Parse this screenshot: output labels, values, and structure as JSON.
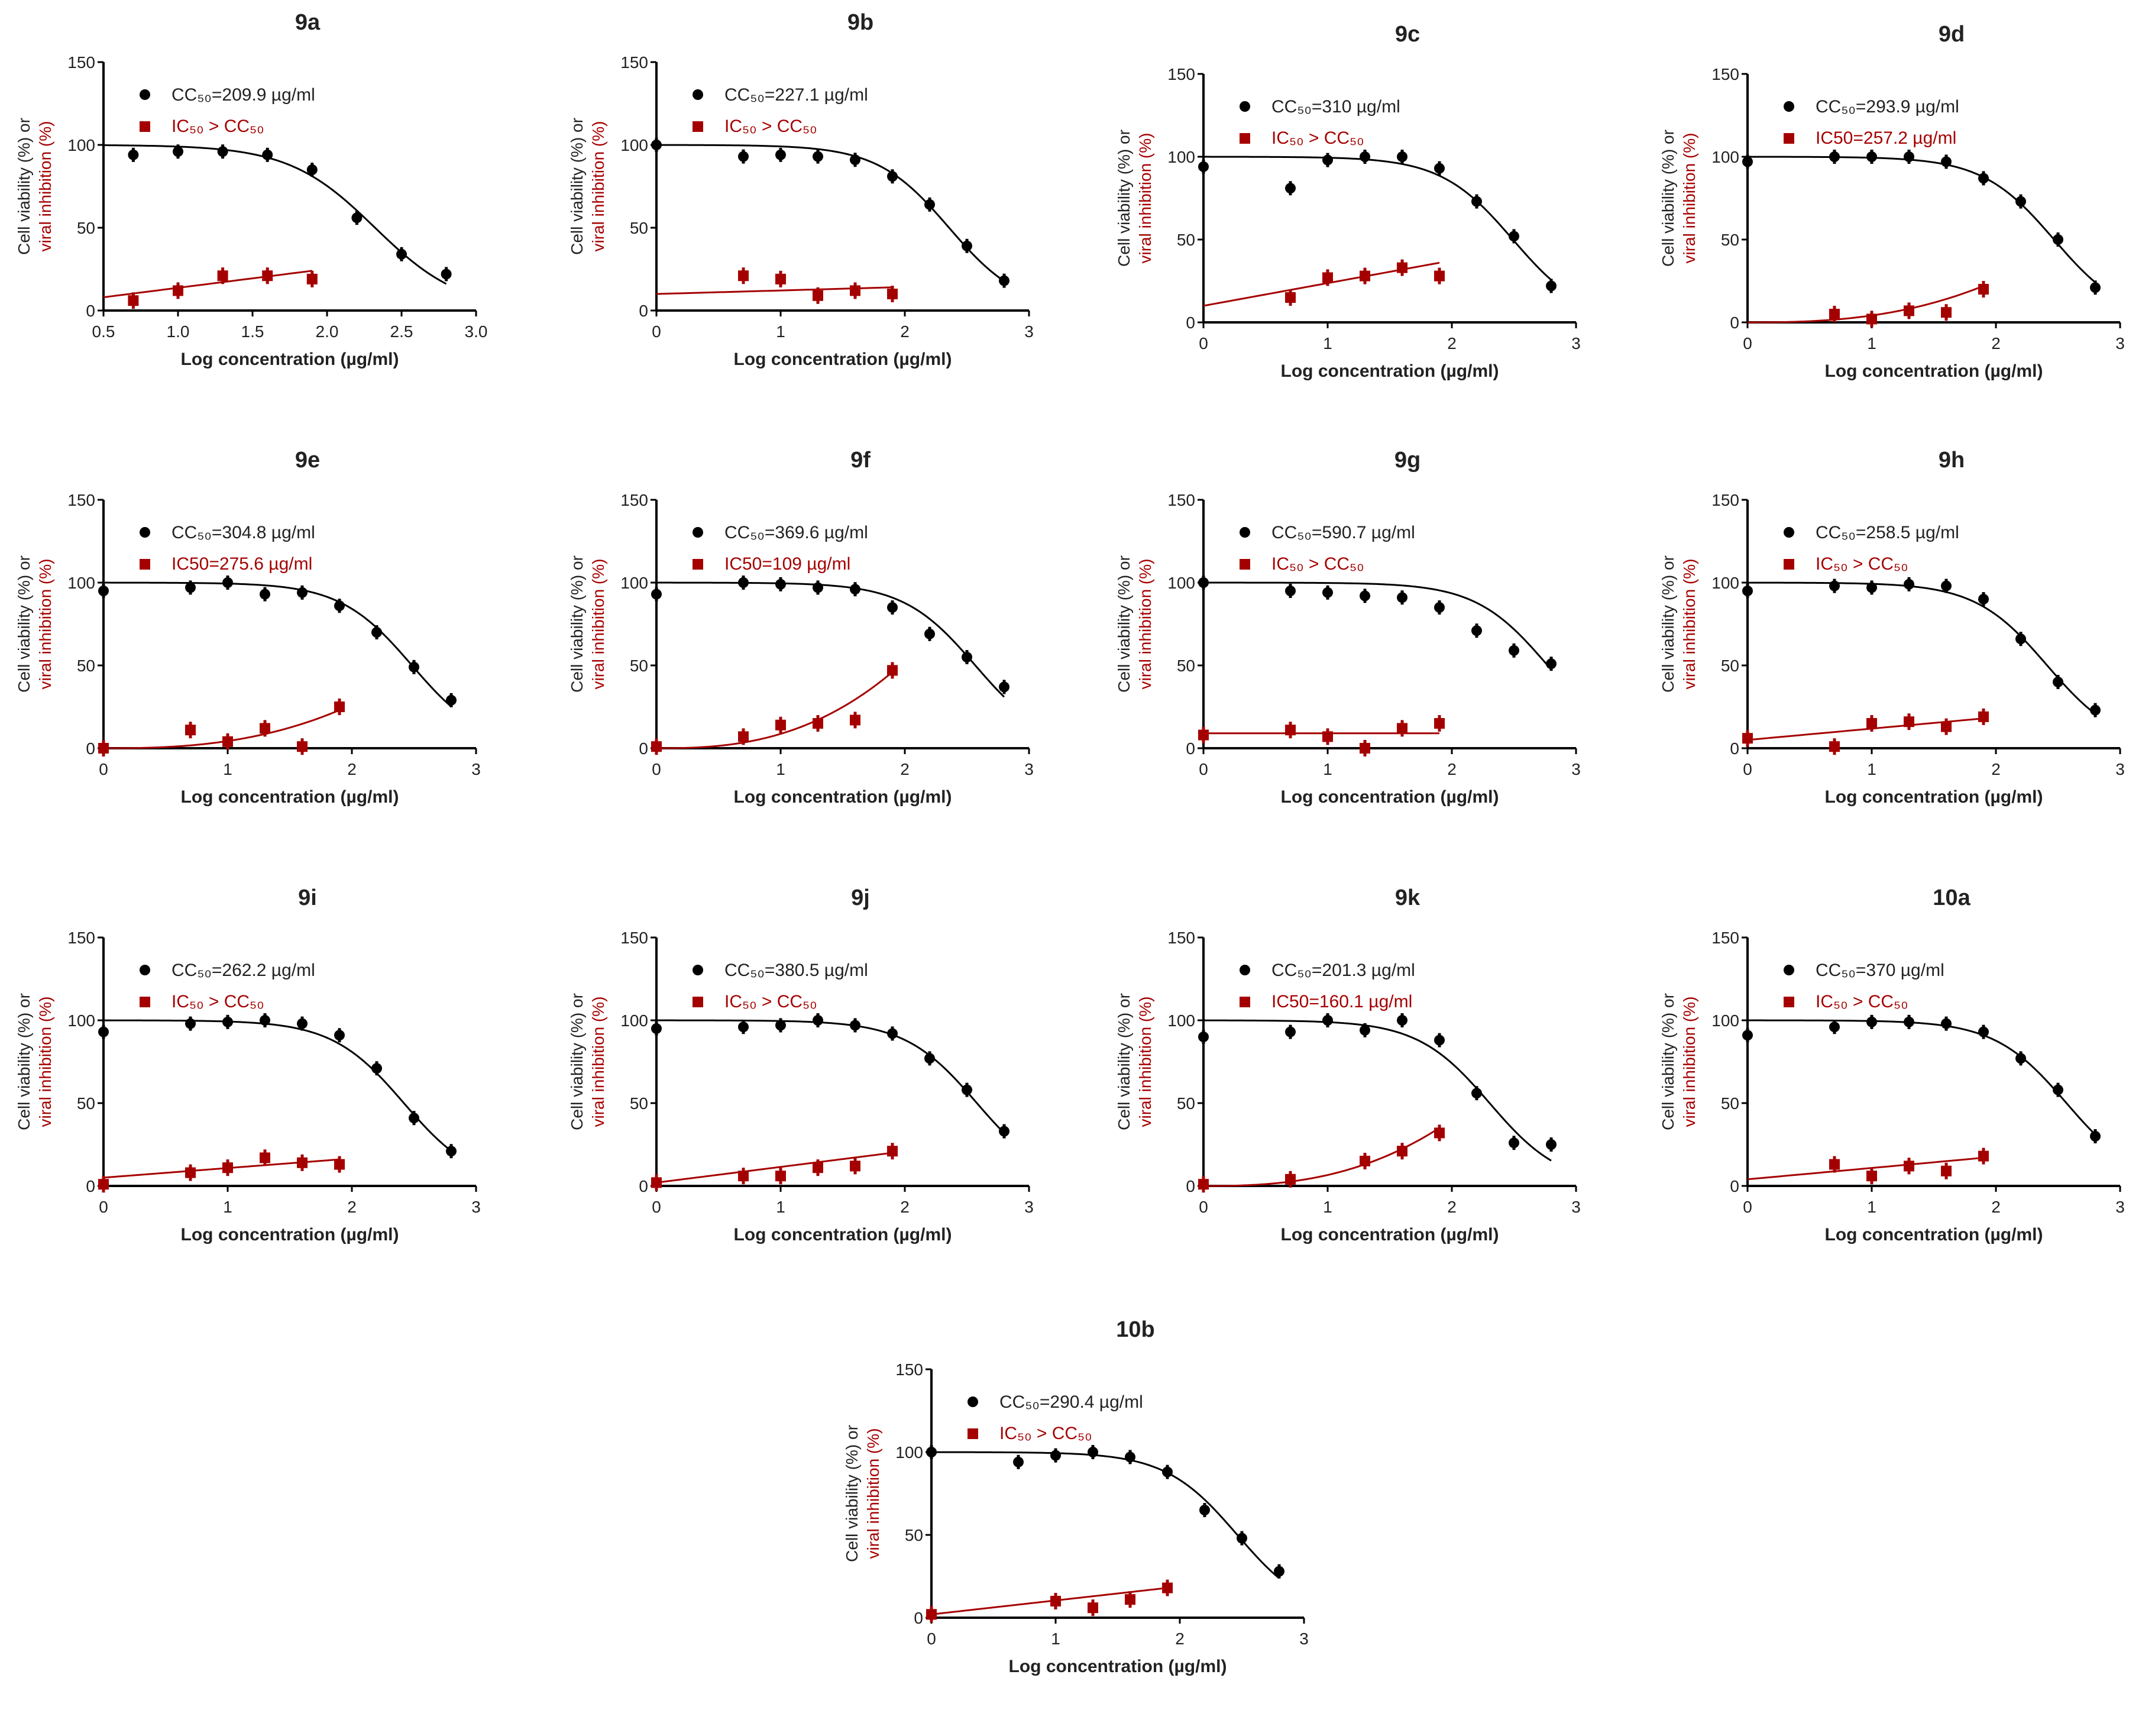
{
  "colors": {
    "viability": "#000000",
    "inhibition": "#a50000"
  },
  "chart_data": [
    {
      "type": "line",
      "title": "9a",
      "xlim": [
        0.5,
        3.0
      ],
      "xticks": [
        "0.5",
        "1.0",
        "1.5",
        "2.0",
        "2.5",
        "3.0"
      ],
      "ylim": [
        0,
        150
      ],
      "yticks": [
        "0",
        "50",
        "100",
        "150"
      ],
      "ylabel_line1": "Cell viability (%) or",
      "ylabel_line2": "viral inhibition (%)",
      "xlabel": "Log concentration  (µg/ml)",
      "legend": [
        "CC₅₀=209.9 µg/ml",
        "IC₅₀ > CC₅₀"
      ],
      "cc50": 209.9,
      "viability": {
        "x": [
          0.7,
          1.0,
          1.3,
          1.6,
          1.9,
          2.2,
          2.5,
          2.8
        ],
        "y": [
          94,
          96,
          96,
          94,
          85,
          56,
          34,
          22
        ]
      },
      "inhibition": {
        "x": [
          0.7,
          1.0,
          1.3,
          1.6,
          1.9
        ],
        "y": [
          6,
          12,
          21,
          21,
          19
        ]
      },
      "inhibition_fit": {
        "type": "linear",
        "range": [
          8,
          24
        ]
      }
    },
    {
      "type": "line",
      "title": "9b",
      "xlim": [
        0,
        3
      ],
      "xticks": [
        "0",
        "1",
        "2",
        "3"
      ],
      "ylim": [
        0,
        150
      ],
      "yticks": [
        "0",
        "50",
        "100",
        "150"
      ],
      "ylabel_line1": "Cell viability (%) or",
      "ylabel_line2": "viral inhibition (%)",
      "xlabel": "Log concentration  (µg/ml)",
      "legend": [
        "CC₅₀=227.1 µg/ml",
        "IC₅₀ > CC₅₀"
      ],
      "cc50": 227.1,
      "viability": {
        "x": [
          0,
          0.7,
          1.0,
          1.3,
          1.6,
          1.9,
          2.2,
          2.5,
          2.8
        ],
        "y": [
          100,
          93,
          94,
          93,
          91,
          81,
          64,
          39,
          18
        ]
      },
      "inhibition": {
        "x": [
          0.7,
          1.0,
          1.3,
          1.6,
          1.9
        ],
        "y": [
          21,
          19,
          9,
          12,
          10
        ]
      },
      "inhibition_fit": {
        "type": "linear",
        "range": [
          10,
          14
        ]
      }
    },
    {
      "type": "line",
      "title": "9c",
      "xlim": [
        0,
        3
      ],
      "xticks": [
        "0",
        "1",
        "2",
        "3"
      ],
      "ylim": [
        0,
        150
      ],
      "yticks": [
        "0",
        "50",
        "100",
        "150"
      ],
      "ylabel_line1": "Cell viability (%) or",
      "ylabel_line2": "viral inhibition (%)",
      "xlabel": "Log concentration  (µg/ml)",
      "legend": [
        "CC₅₀=310 µg/ml",
        "IC₅₀ > CC₅₀"
      ],
      "cc50": 310,
      "viability": {
        "x": [
          0,
          0.7,
          1.0,
          1.3,
          1.6,
          1.9,
          2.2,
          2.5,
          2.8
        ],
        "y": [
          94,
          81,
          98,
          100,
          100,
          93,
          73,
          52,
          22
        ]
      },
      "inhibition": {
        "x": [
          0.7,
          1.0,
          1.3,
          1.6,
          1.9
        ],
        "y": [
          15,
          27,
          28,
          33,
          28
        ]
      },
      "inhibition_fit": {
        "type": "linear",
        "range": [
          10,
          36
        ]
      }
    },
    {
      "type": "line",
      "title": "9d",
      "xlim": [
        0,
        3
      ],
      "xticks": [
        "0",
        "1",
        "2",
        "3"
      ],
      "ylim": [
        0,
        150
      ],
      "yticks": [
        "0",
        "50",
        "100",
        "150"
      ],
      "ylabel_line1": "Cell viability (%) or",
      "ylabel_line2": "viral inhibition (%)",
      "xlabel": "Log concentration  (µg/ml)",
      "legend": [
        "CC₅₀=293.9 µg/ml",
        "IC50=257.2 µg/ml"
      ],
      "cc50": 293.9,
      "viability": {
        "x": [
          0,
          0.7,
          1.0,
          1.3,
          1.6,
          1.9,
          2.2,
          2.5,
          2.8
        ],
        "y": [
          97,
          100,
          100,
          100,
          97,
          87,
          73,
          50,
          21
        ]
      },
      "inhibition": {
        "x": [
          0.7,
          1.0,
          1.3,
          1.6,
          1.9
        ],
        "y": [
          5,
          2,
          7,
          6,
          20
        ]
      },
      "inhibition_fit": {
        "type": "curved",
        "range": [
          0,
          22
        ]
      }
    },
    {
      "type": "line",
      "title": "9e",
      "xlim": [
        0,
        3
      ],
      "xticks": [
        "0",
        "1",
        "2",
        "3"
      ],
      "ylim": [
        0,
        150
      ],
      "yticks": [
        "0",
        "50",
        "100",
        "150"
      ],
      "ylabel_line1": "Cell viability (%) or",
      "ylabel_line2": "viral inhibition (%)",
      "xlabel": "Log concentration  (µg/ml)",
      "legend": [
        "CC₅₀=304.8 µg/ml",
        "IC50=275.6 µg/ml"
      ],
      "cc50": 304.8,
      "viability": {
        "x": [
          0,
          0.7,
          1.0,
          1.3,
          1.6,
          1.9,
          2.2,
          2.5,
          2.8
        ],
        "y": [
          95,
          97,
          100,
          93,
          94,
          86,
          70,
          49,
          29
        ]
      },
      "inhibition": {
        "x": [
          0,
          0.7,
          1.0,
          1.3,
          1.6,
          1.9
        ],
        "y": [
          0,
          11,
          4,
          12,
          1,
          25
        ]
      },
      "inhibition_fit": {
        "type": "curved",
        "range": [
          0,
          23
        ]
      }
    },
    {
      "type": "line",
      "title": "9f",
      "xlim": [
        0,
        3
      ],
      "xticks": [
        "0",
        "1",
        "2",
        "3"
      ],
      "ylim": [
        0,
        150
      ],
      "yticks": [
        "0",
        "50",
        "100",
        "150"
      ],
      "ylabel_line1": "Cell viability (%) or",
      "ylabel_line2": "viral inhibition (%)",
      "xlabel": "Log concentration  (µg/ml)",
      "legend": [
        "CC₅₀=369.6 µg/ml",
        "IC50=109 µg/ml"
      ],
      "cc50": 369.6,
      "viability": {
        "x": [
          0,
          0.7,
          1.0,
          1.3,
          1.6,
          1.9,
          2.2,
          2.5,
          2.8
        ],
        "y": [
          93,
          100,
          99,
          97,
          96,
          85,
          69,
          55,
          37
        ]
      },
      "inhibition": {
        "x": [
          0,
          0.7,
          1.0,
          1.3,
          1.6,
          1.9
        ],
        "y": [
          1,
          7,
          14,
          15,
          17,
          47
        ]
      },
      "inhibition_fit": {
        "type": "curved",
        "range": [
          0,
          46
        ]
      }
    },
    {
      "type": "line",
      "title": "9g",
      "xlim": [
        0,
        3
      ],
      "xticks": [
        "0",
        "1",
        "2",
        "3"
      ],
      "ylim": [
        0,
        150
      ],
      "yticks": [
        "0",
        "50",
        "100",
        "150"
      ],
      "ylabel_line1": "Cell viability (%) or",
      "ylabel_line2": "viral inhibition (%)",
      "xlabel": "Log concentration  (µg/ml)",
      "legend": [
        "CC₅₀=590.7 µg/ml",
        "IC₅₀ > CC₅₀"
      ],
      "cc50": 590.7,
      "viability": {
        "x": [
          0,
          0.7,
          1.0,
          1.3,
          1.6,
          1.9,
          2.2,
          2.5,
          2.8
        ],
        "y": [
          100,
          95,
          94,
          92,
          91,
          85,
          71,
          59,
          51
        ]
      },
      "inhibition": {
        "x": [
          0,
          0.7,
          1.0,
          1.3,
          1.6,
          1.9
        ],
        "y": [
          8,
          11,
          7,
          0,
          12,
          15
        ]
      },
      "inhibition_fit": {
        "type": "linear",
        "range": [
          9,
          9
        ]
      }
    },
    {
      "type": "line",
      "title": "9h",
      "xlim": [
        0,
        3
      ],
      "xticks": [
        "0",
        "1",
        "2",
        "3"
      ],
      "ylim": [
        0,
        150
      ],
      "yticks": [
        "0",
        "50",
        "100",
        "150"
      ],
      "ylabel_line1": "Cell viability (%) or",
      "ylabel_line2": "viral inhibition (%)",
      "xlabel": "Log concentration  (µg/ml)",
      "legend": [
        "CC₅₀=258.5 µg/ml",
        "IC₅₀ > CC₅₀"
      ],
      "cc50": 258.5,
      "viability": {
        "x": [
          0,
          0.7,
          1.0,
          1.3,
          1.6,
          1.9,
          2.2,
          2.5,
          2.8
        ],
        "y": [
          95,
          98,
          97,
          99,
          98,
          90,
          66,
          40,
          23
        ]
      },
      "inhibition": {
        "x": [
          0,
          0.7,
          1.0,
          1.3,
          1.6,
          1.9
        ],
        "y": [
          6,
          1,
          15,
          16,
          13,
          19
        ]
      },
      "inhibition_fit": {
        "type": "linear",
        "range": [
          5,
          18
        ]
      }
    },
    {
      "type": "line",
      "title": "9i",
      "xlim": [
        0,
        3
      ],
      "xticks": [
        "0",
        "1",
        "2",
        "3"
      ],
      "ylim": [
        0,
        150
      ],
      "yticks": [
        "0",
        "50",
        "100",
        "150"
      ],
      "ylabel_line1": "Cell viability (%) or",
      "ylabel_line2": "viral inhibition (%)",
      "xlabel": "Log concentration  (µg/ml)",
      "legend": [
        "CC₅₀=262.2 µg/ml",
        "IC₅₀ > CC₅₀"
      ],
      "cc50": 262.2,
      "viability": {
        "x": [
          0,
          0.7,
          1.0,
          1.3,
          1.6,
          1.9,
          2.2,
          2.5,
          2.8
        ],
        "y": [
          93,
          98,
          99,
          100,
          98,
          91,
          71,
          41,
          21
        ]
      },
      "inhibition": {
        "x": [
          0,
          0.7,
          1.0,
          1.3,
          1.6,
          1.9
        ],
        "y": [
          1,
          8,
          11,
          17,
          14,
          13
        ]
      },
      "inhibition_fit": {
        "type": "linear",
        "range": [
          5,
          16
        ]
      }
    },
    {
      "type": "line",
      "title": "9j",
      "xlim": [
        0,
        3
      ],
      "xticks": [
        "0",
        "1",
        "2",
        "3"
      ],
      "ylim": [
        0,
        150
      ],
      "yticks": [
        "0",
        "50",
        "100",
        "150"
      ],
      "ylabel_line1": "Cell viability (%) or",
      "ylabel_line2": "viral inhibition (%)",
      "xlabel": "Log concentration  (µg/ml)",
      "legend": [
        "CC₅₀=380.5 µg/ml",
        "IC₅₀ > CC₅₀"
      ],
      "cc50": 380.5,
      "viability": {
        "x": [
          0,
          0.7,
          1.0,
          1.3,
          1.6,
          1.9,
          2.2,
          2.5,
          2.8
        ],
        "y": [
          95,
          96,
          97,
          100,
          97,
          92,
          77,
          58,
          33
        ]
      },
      "inhibition": {
        "x": [
          0,
          0.7,
          1.0,
          1.3,
          1.6,
          1.9
        ],
        "y": [
          2,
          6,
          6,
          11,
          12,
          21
        ]
      },
      "inhibition_fit": {
        "type": "linear",
        "range": [
          2,
          20
        ]
      }
    },
    {
      "type": "line",
      "title": "9k",
      "xlim": [
        0,
        3
      ],
      "xticks": [
        "0",
        "1",
        "2",
        "3"
      ],
      "ylim": [
        0,
        150
      ],
      "yticks": [
        "0",
        "50",
        "100",
        "150"
      ],
      "ylabel_line1": "Cell viability (%) or",
      "ylabel_line2": "viral inhibition (%)",
      "xlabel": "Log concentration  (µg/ml)",
      "legend": [
        "CC₅₀=201.3 µg/ml",
        "IC50=160.1 µg/ml"
      ],
      "cc50": 201.3,
      "viability": {
        "x": [
          0,
          0.7,
          1.0,
          1.3,
          1.6,
          1.9,
          2.2,
          2.5,
          2.8
        ],
        "y": [
          90,
          93,
          100,
          94,
          100,
          88,
          56,
          26,
          25
        ]
      },
      "inhibition": {
        "x": [
          0,
          0.7,
          1.3,
          1.6,
          1.9
        ],
        "y": [
          1,
          4,
          15,
          21,
          32
        ]
      },
      "inhibition_fit": {
        "type": "curved",
        "range": [
          0,
          35
        ]
      }
    },
    {
      "type": "line",
      "title": "10a",
      "xlim": [
        0,
        3
      ],
      "xticks": [
        "0",
        "1",
        "2",
        "3"
      ],
      "ylim": [
        0,
        150
      ],
      "yticks": [
        "0",
        "50",
        "100",
        "150"
      ],
      "ylabel_line1": "Cell viability (%) or",
      "ylabel_line2": "viral inhibition (%)",
      "xlabel": "Log concentration  (µg/ml)",
      "legend": [
        "CC₅₀=370 µg/ml",
        "IC₅₀ > CC₅₀"
      ],
      "cc50": 370,
      "viability": {
        "x": [
          0,
          0.7,
          1.0,
          1.3,
          1.6,
          1.9,
          2.2,
          2.5,
          2.8
        ],
        "y": [
          91,
          96,
          99,
          99,
          98,
          93,
          77,
          58,
          30
        ]
      },
      "inhibition": {
        "x": [
          0.7,
          1.0,
          1.3,
          1.6,
          1.9
        ],
        "y": [
          13,
          6,
          12,
          9,
          18
        ]
      },
      "inhibition_fit": {
        "type": "linear",
        "range": [
          4,
          17
        ]
      }
    },
    {
      "type": "line",
      "title": "10b",
      "xlim": [
        0,
        3
      ],
      "xticks": [
        "0",
        "1",
        "2",
        "3"
      ],
      "ylim": [
        0,
        150
      ],
      "yticks": [
        "0",
        "50",
        "100",
        "150"
      ],
      "ylabel_line1": "Cell viability (%) or",
      "ylabel_line2": "viral inhibition (%)",
      "xlabel": "Log concentration  (µg/ml)",
      "legend": [
        "CC₅₀=290.4 µg/ml",
        "IC₅₀ > CC₅₀"
      ],
      "cc50": 290.4,
      "viability": {
        "x": [
          0,
          0.7,
          1.0,
          1.3,
          1.6,
          1.9,
          2.2,
          2.5,
          2.8
        ],
        "y": [
          100,
          94,
          98,
          100,
          97,
          88,
          65,
          48,
          28
        ]
      },
      "inhibition": {
        "x": [
          0,
          1.0,
          1.3,
          1.6,
          1.9
        ],
        "y": [
          2,
          10,
          6,
          11,
          18
        ]
      },
      "inhibition_fit": {
        "type": "linear",
        "range": [
          2,
          18
        ]
      }
    }
  ]
}
